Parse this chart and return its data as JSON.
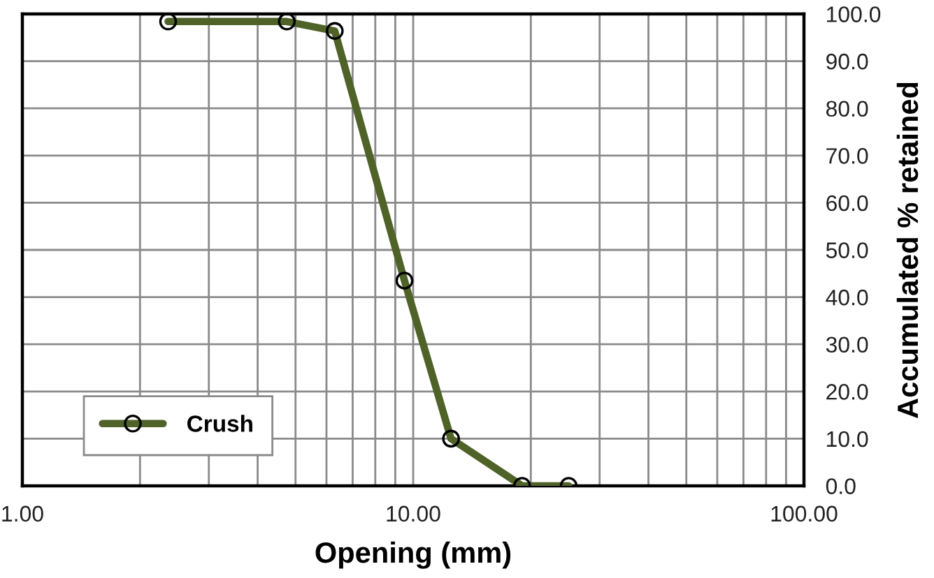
{
  "chart_data": {
    "type": "line",
    "xlabel": "Opening (mm)",
    "ylabel": "Accumulated % retained",
    "x": [
      2.36,
      4.75,
      6.3,
      9.5,
      12.5,
      19,
      25
    ],
    "series": [
      {
        "name": "Crush",
        "color": "#4f6228",
        "values": [
          98.4,
          98.4,
          96.4,
          43.5,
          10.0,
          0,
          0
        ]
      }
    ],
    "log": "x",
    "xlim": [
      1,
      100
    ],
    "xticks": [
      {
        "value": 1,
        "label": "1.00"
      },
      {
        "value": 2,
        "label": null
      },
      {
        "value": 3,
        "label": null
      },
      {
        "value": 4,
        "label": null
      },
      {
        "value": 5,
        "label": null
      },
      {
        "value": 6,
        "label": null
      },
      {
        "value": 7,
        "label": null
      },
      {
        "value": 8,
        "label": null
      },
      {
        "value": 9,
        "label": null
      },
      {
        "value": 10,
        "label": "10.00"
      },
      {
        "value": 20,
        "label": null
      },
      {
        "value": 30,
        "label": null
      },
      {
        "value": 40,
        "label": null
      },
      {
        "value": 50,
        "label": null
      },
      {
        "value": 60,
        "label": null
      },
      {
        "value": 70,
        "label": null
      },
      {
        "value": 80,
        "label": null
      },
      {
        "value": 90,
        "label": null
      },
      {
        "value": 100,
        "label": "100.00"
      }
    ],
    "ylim": [
      0,
      100
    ],
    "yticks": [
      {
        "value": 0,
        "label": "0.0"
      },
      {
        "value": 10,
        "label": "10.0"
      },
      {
        "value": 20,
        "label": "20.0"
      },
      {
        "value": 30,
        "label": "30.0"
      },
      {
        "value": 40,
        "label": "40.0"
      },
      {
        "value": 50,
        "label": "50.0"
      },
      {
        "value": 60,
        "label": "60.0"
      },
      {
        "value": 70,
        "label": "70.0"
      },
      {
        "value": 80,
        "label": "80.0"
      },
      {
        "value": 90,
        "label": "90.0"
      },
      {
        "value": 100,
        "label": "100.0"
      }
    ],
    "grid": true,
    "legend": "bottom left",
    "marker": "circle",
    "line_style": "solid"
  }
}
